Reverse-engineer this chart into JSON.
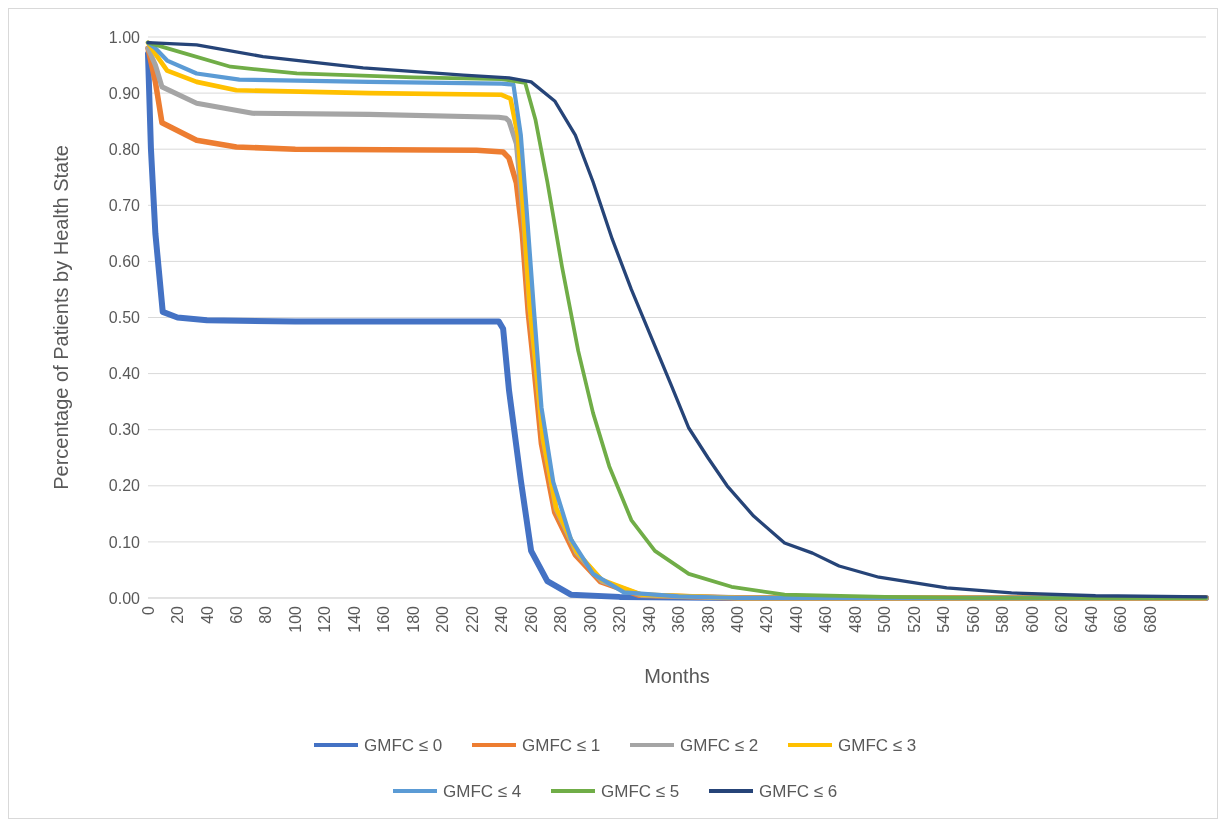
{
  "chart_data": {
    "type": "line",
    "xlabel": "Months",
    "ylabel": "Percentage of Patients by Health State",
    "xlim": [
      0,
      718
    ],
    "xticks": [
      0,
      20,
      40,
      60,
      80,
      100,
      120,
      140,
      160,
      180,
      200,
      220,
      240,
      260,
      280,
      300,
      320,
      340,
      360,
      380,
      400,
      420,
      440,
      460,
      480,
      500,
      520,
      540,
      560,
      580,
      600,
      620,
      640,
      660,
      680
    ],
    "ylim": [
      0,
      1
    ],
    "yticks": [
      {
        "value": 0,
        "label": "0.00"
      },
      {
        "value": 0.1,
        "label": "0.10"
      },
      {
        "value": 0.2,
        "label": "0.20"
      },
      {
        "value": 0.3,
        "label": "0.30"
      },
      {
        "value": 0.4,
        "label": "0.40"
      },
      {
        "value": 0.5,
        "label": "0.50"
      },
      {
        "value": 0.6,
        "label": "0.60"
      },
      {
        "value": 0.7,
        "label": "0.70"
      },
      {
        "value": 0.8,
        "label": "0.80"
      },
      {
        "value": 0.9,
        "label": "0.90"
      },
      {
        "value": 1,
        "label": "1.00"
      }
    ],
    "grid": "y",
    "legend": "bottom",
    "marker": "none",
    "line_style": "solid",
    "series": [
      {
        "name": "GMFC ≤ 0",
        "color": "#4472c4",
        "x": [
          0,
          2,
          5,
          10,
          20,
          40,
          100,
          200,
          238,
          241,
          245,
          253,
          260,
          271,
          287,
          320,
          400,
          718
        ],
        "values": [
          0.97,
          0.8,
          0.65,
          0.51,
          0.5,
          0.495,
          0.493,
          0.493,
          0.493,
          0.48,
          0.37,
          0.21,
          0.084,
          0.03,
          0.006,
          0.002,
          0,
          0
        ]
      },
      {
        "name": "GMFC ≤ 1",
        "color": "#ed7d31",
        "x": [
          0,
          5,
          9.5,
          33,
          60,
          100,
          223,
          241,
          245,
          250,
          254,
          258,
          262,
          267,
          276,
          290,
          307,
          333,
          400,
          718
        ],
        "values": [
          0.98,
          0.92,
          0.847,
          0.816,
          0.804,
          0.8,
          0.798,
          0.795,
          0.784,
          0.74,
          0.65,
          0.51,
          0.41,
          0.275,
          0.153,
          0.077,
          0.029,
          0.005,
          0,
          0
        ]
      },
      {
        "name": "GMFC ≤ 2",
        "color": "#a5a5a5",
        "x": [
          0,
          5,
          9.5,
          33,
          71,
          150,
          238,
          243,
          245,
          250,
          255,
          259,
          263,
          268,
          277,
          291,
          308,
          335,
          400,
          718
        ],
        "values": [
          0.98,
          0.95,
          0.911,
          0.882,
          0.864,
          0.862,
          0.857,
          0.855,
          0.85,
          0.81,
          0.67,
          0.52,
          0.42,
          0.285,
          0.158,
          0.08,
          0.03,
          0.005,
          0,
          0
        ]
      },
      {
        "name": "GMFC ≤ 3",
        "color": "#ffc000",
        "x": [
          0,
          5,
          13,
          33,
          60,
          150,
          240,
          246,
          251,
          255,
          259,
          263,
          268,
          277,
          291,
          308,
          335,
          400,
          718
        ],
        "values": [
          0.99,
          0.97,
          0.94,
          0.92,
          0.905,
          0.9,
          0.897,
          0.89,
          0.825,
          0.68,
          0.52,
          0.42,
          0.285,
          0.16,
          0.082,
          0.032,
          0.006,
          0,
          0
        ]
      },
      {
        "name": "GMFC ≤ 4",
        "color": "#5b9bd5",
        "x": [
          0,
          5,
          13,
          33,
          62,
          150,
          240,
          248,
          253,
          257,
          262,
          267,
          275,
          287,
          302,
          323,
          360,
          400,
          718
        ],
        "values": [
          0.99,
          0.98,
          0.958,
          0.935,
          0.924,
          0.92,
          0.917,
          0.915,
          0.825,
          0.69,
          0.51,
          0.34,
          0.207,
          0.105,
          0.043,
          0.01,
          0.003,
          0,
          0
        ]
      },
      {
        "name": "GMFC ≤ 5",
        "color": "#70ad47",
        "x": [
          0,
          22,
          56,
          101,
          180,
          240,
          256,
          263,
          271,
          281,
          292,
          302,
          313,
          328,
          344,
          367,
          396,
          432,
          500,
          560,
          718
        ],
        "values": [
          0.99,
          0.973,
          0.947,
          0.935,
          0.928,
          0.925,
          0.918,
          0.852,
          0.742,
          0.59,
          0.44,
          0.33,
          0.235,
          0.139,
          0.084,
          0.043,
          0.02,
          0.006,
          0.002,
          0,
          0
        ]
      },
      {
        "name": "GMFC ≤ 6",
        "color": "#264478",
        "x": [
          0,
          33,
          78,
          146,
          214,
          245,
          260,
          276,
          290,
          302,
          315,
          328,
          342,
          355,
          367,
          380,
          393,
          411,
          432,
          451,
          469,
          496,
          542,
          586,
          643,
          718
        ],
        "values": [
          0.99,
          0.986,
          0.965,
          0.945,
          0.932,
          0.927,
          0.92,
          0.886,
          0.825,
          0.742,
          0.64,
          0.55,
          0.462,
          0.38,
          0.303,
          0.25,
          0.2,
          0.146,
          0.098,
          0.08,
          0.057,
          0.037,
          0.018,
          0.009,
          0.004,
          0.002
        ]
      }
    ]
  }
}
